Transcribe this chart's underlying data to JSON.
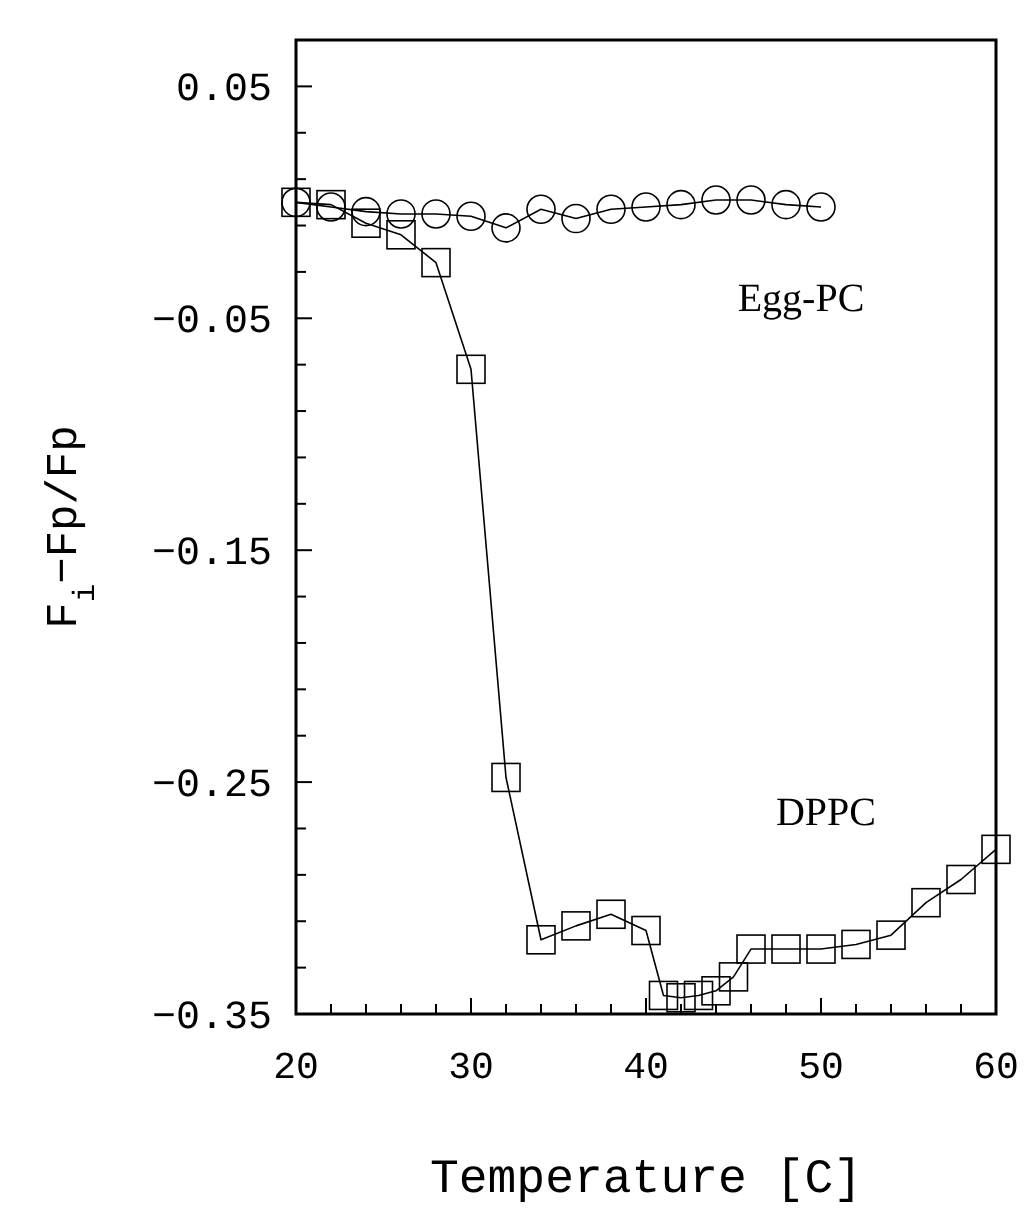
{
  "chart_data": {
    "type": "line",
    "xlabel": "Temperature [C]",
    "ylabel": "F$_{i}$−Fp/Fp",
    "xlim": [
      20,
      60
    ],
    "ylim": [
      -0.35,
      0.07
    ],
    "xticks": [
      20,
      {
        "value": 22,
        "label": null
      },
      {
        "value": 24,
        "label": null
      },
      {
        "value": 26,
        "label": null
      },
      {
        "value": 28,
        "label": null
      },
      30,
      {
        "value": 32,
        "label": null
      },
      {
        "value": 34,
        "label": null
      },
      {
        "value": 36,
        "label": null
      },
      {
        "value": 38,
        "label": null
      },
      40,
      {
        "value": 42,
        "label": null
      },
      {
        "value": 44,
        "label": null
      },
      {
        "value": 46,
        "label": null
      },
      {
        "value": 48,
        "label": null
      },
      50,
      {
        "value": 52,
        "label": null
      },
      {
        "value": 54,
        "label": null
      },
      {
        "value": 56,
        "label": null
      },
      {
        "value": 58,
        "label": null
      },
      60
    ],
    "yticks": [
      {
        "value": -0.35,
        "label": "−0.35"
      },
      {
        "value": -0.33,
        "label": null
      },
      {
        "value": -0.31,
        "label": null
      },
      {
        "value": -0.29,
        "label": null
      },
      {
        "value": -0.27,
        "label": null
      },
      {
        "value": -0.25,
        "label": "−0.25"
      },
      {
        "value": -0.23,
        "label": null
      },
      {
        "value": -0.21,
        "label": null
      },
      {
        "value": -0.19,
        "label": null
      },
      {
        "value": -0.17,
        "label": null
      },
      {
        "value": -0.15,
        "label": "−0.15"
      },
      {
        "value": -0.13,
        "label": null
      },
      {
        "value": -0.11,
        "label": null
      },
      {
        "value": -0.09,
        "label": null
      },
      {
        "value": -0.07,
        "label": null
      },
      {
        "value": -0.05,
        "label": "−0.05"
      },
      {
        "value": -0.03,
        "label": null
      },
      {
        "value": -0.01,
        "label": null
      },
      {
        "value": 0.01,
        "label": null
      },
      {
        "value": 0.03,
        "label": null
      },
      0.05
    ],
    "grid": false,
    "line_style": "solid",
    "series": [
      {
        "name": "Egg-PC",
        "color": "#000000",
        "marker": "circle",
        "x": [
          20,
          22,
          24,
          26,
          28,
          30,
          32,
          34,
          36,
          38,
          40,
          42,
          44,
          46,
          48,
          50
        ],
        "values": [
          0.0,
          -0.002,
          -0.004,
          -0.005,
          -0.005,
          -0.006,
          -0.011,
          -0.003,
          -0.007,
          -0.003,
          -0.002,
          -0.001,
          0.001,
          0.001,
          -0.001,
          -0.002
        ]
      },
      {
        "name": "DPPC",
        "color": "#000000",
        "marker": "square",
        "x": [
          20,
          22,
          24,
          26,
          28,
          30,
          32,
          34,
          36,
          38,
          40,
          41,
          42,
          43,
          44,
          45,
          46,
          48,
          50,
          52,
          54,
          56,
          58,
          60
        ],
        "values": [
          0.0,
          -0.001,
          -0.009,
          -0.014,
          -0.026,
          -0.072,
          -0.248,
          -0.318,
          -0.312,
          -0.307,
          -0.314,
          -0.342,
          -0.343,
          -0.342,
          -0.34,
          -0.334,
          -0.322,
          -0.322,
          -0.322,
          -0.32,
          -0.316,
          -0.302,
          -0.292,
          -0.279
        ]
      }
    ]
  }
}
